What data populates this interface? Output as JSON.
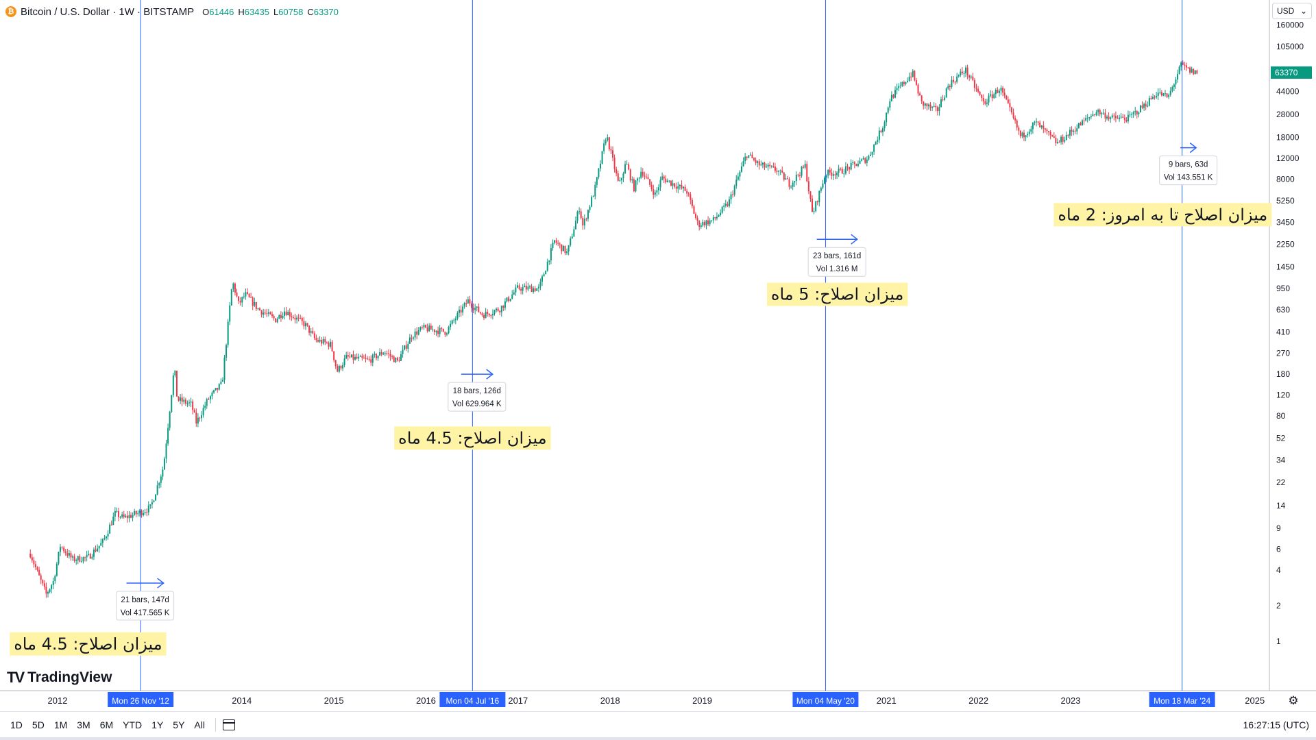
{
  "header": {
    "symbol_icon": "bitcoin-icon",
    "title": "Bitcoin / U.S. Dollar · 1W · BITSTAMP",
    "ohlc": [
      {
        "key": "O",
        "value": "61446"
      },
      {
        "key": "H",
        "value": "63435"
      },
      {
        "key": "L",
        "value": "60758"
      },
      {
        "key": "C",
        "value": "63370"
      }
    ]
  },
  "currency_selector": {
    "value": "USD",
    "icon": "chevron-down-icon"
  },
  "logo": {
    "text": "TradingView",
    "mark": "TV"
  },
  "bottom_toolbar": {
    "ranges": [
      "1D",
      "5D",
      "1M",
      "3M",
      "6M",
      "YTD",
      "1Y",
      "5Y",
      "All"
    ],
    "calendar_icon": "calendar-icon",
    "clock": "16:27:15 (UTC)"
  },
  "settings_icon": "gear-icon",
  "colors": {
    "up": "#089981",
    "down": "#f23645",
    "vline": "#2962ff",
    "note_bg": "#fff3a6",
    "price_badge": "#089981"
  },
  "chart_data": {
    "type": "candlestick",
    "scale": "log",
    "ylim": [
      0.6,
      200000
    ],
    "y_ticks": [
      160000,
      105000,
      60000,
      44000,
      28000,
      18000,
      12000,
      8000,
      5250,
      3450,
      2250,
      1450,
      950,
      630,
      410,
      270,
      180,
      120,
      80,
      52,
      34,
      22,
      14,
      9,
      6,
      4,
      2,
      1
    ],
    "x_ticks": [
      {
        "label": "2012",
        "year": 2012.0
      },
      {
        "label": "2014",
        "year": 2014.0
      },
      {
        "label": "2015",
        "year": 2015.0
      },
      {
        "label": "2016",
        "year": 2016.0
      },
      {
        "label": "2017",
        "year": 2017.0
      },
      {
        "label": "2018",
        "year": 2018.0
      },
      {
        "label": "2019",
        "year": 2019.0
      },
      {
        "label": "2021",
        "year": 2021.0
      },
      {
        "label": "2022",
        "year": 2022.0
      },
      {
        "label": "2023",
        "year": 2023.0
      },
      {
        "label": "2025",
        "year": 2025.0
      }
    ],
    "current_price": {
      "label": "63370",
      "value": 63370
    },
    "price_series": [
      [
        "2011-09-15",
        5.5
      ],
      [
        "2011-10-20",
        3.5
      ],
      [
        "2011-11-17",
        2.5
      ],
      [
        "2011-12-15",
        3.2
      ],
      [
        "2012-01-12",
        6.4
      ],
      [
        "2012-03-01",
        4.9
      ],
      [
        "2012-05-01",
        5.1
      ],
      [
        "2012-07-01",
        7.0
      ],
      [
        "2012-08-17",
        12.0
      ],
      [
        "2012-09-20",
        11.0
      ],
      [
        "2012-11-26",
        12.3
      ],
      [
        "2013-01-05",
        13.5
      ],
      [
        "2013-02-25",
        30.0
      ],
      [
        "2013-04-09",
        210.0
      ],
      [
        "2013-04-20",
        110.0
      ],
      [
        "2013-06-15",
        100.0
      ],
      [
        "2013-07-05",
        70.0
      ],
      [
        "2013-08-20",
        110.0
      ],
      [
        "2013-10-15",
        150.0
      ],
      [
        "2013-11-25",
        1100.0
      ],
      [
        "2013-12-20",
        700.0
      ],
      [
        "2014-01-15",
        850.0
      ],
      [
        "2014-03-10",
        630.0
      ],
      [
        "2014-05-15",
        520.0
      ],
      [
        "2014-06-20",
        620.0
      ],
      [
        "2014-09-10",
        470.0
      ],
      [
        "2014-10-20",
        350.0
      ],
      [
        "2014-12-20",
        320.0
      ],
      [
        "2015-01-14",
        190.0
      ],
      [
        "2015-02-20",
        250.0
      ],
      [
        "2015-05-20",
        235.0
      ],
      [
        "2015-07-20",
        280.0
      ],
      [
        "2015-09-10",
        230.0
      ],
      [
        "2015-11-05",
        380.0
      ],
      [
        "2015-12-20",
        440.0
      ],
      [
        "2016-03-20",
        410.0
      ],
      [
        "2016-06-18",
        760.0
      ],
      [
        "2016-07-04",
        680.0
      ],
      [
        "2016-08-15",
        570.0
      ],
      [
        "2016-10-20",
        640.0
      ],
      [
        "2016-12-31",
        960.0
      ],
      [
        "2017-03-25",
        950.0
      ],
      [
        "2017-05-25",
        2400.0
      ],
      [
        "2017-07-15",
        1900.0
      ],
      [
        "2017-09-01",
        4600.0
      ],
      [
        "2017-09-15",
        3200.0
      ],
      [
        "2017-11-01",
        6500.0
      ],
      [
        "2017-12-17",
        19000.0
      ],
      [
        "2018-02-05",
        7000.0
      ],
      [
        "2018-03-05",
        11000.0
      ],
      [
        "2018-04-05",
        6700.0
      ],
      [
        "2018-05-05",
        9500.0
      ],
      [
        "2018-06-29",
        5900.0
      ],
      [
        "2018-07-25",
        8200.0
      ],
      [
        "2018-11-01",
        6300.0
      ],
      [
        "2018-12-15",
        3300.0
      ],
      [
        "2019-02-15",
        3600.0
      ],
      [
        "2019-04-15",
        5000.0
      ],
      [
        "2019-06-26",
        13000.0
      ],
      [
        "2019-08-15",
        10500.0
      ],
      [
        "2019-10-25",
        9500.0
      ],
      [
        "2019-12-15",
        7200.0
      ],
      [
        "2020-02-13",
        10300.0
      ],
      [
        "2020-03-13",
        4000.0
      ],
      [
        "2020-05-04",
        8900.0
      ],
      [
        "2020-07-01",
        9200.0
      ],
      [
        "2020-10-20",
        12000.0
      ],
      [
        "2020-12-20",
        23000.0
      ],
      [
        "2021-01-15",
        38000.0
      ],
      [
        "2021-04-14",
        63000.0
      ],
      [
        "2021-05-20",
        35000.0
      ],
      [
        "2021-07-20",
        30000.0
      ],
      [
        "2021-09-05",
        50000.0
      ],
      [
        "2021-11-10",
        67000.0
      ],
      [
        "2022-01-22",
        35000.0
      ],
      [
        "2022-03-28",
        47000.0
      ],
      [
        "2022-05-12",
        28000.0
      ],
      [
        "2022-06-18",
        18000.0
      ],
      [
        "2022-08-15",
        24000.0
      ],
      [
        "2022-11-09",
        16000.0
      ],
      [
        "2023-01-15",
        21000.0
      ],
      [
        "2023-04-14",
        30000.0
      ],
      [
        "2023-06-15",
        26000.0
      ],
      [
        "2023-08-17",
        26000.0
      ],
      [
        "2023-10-24",
        34000.0
      ],
      [
        "2023-12-10",
        43000.0
      ],
      [
        "2024-01-23",
        39000.0
      ],
      [
        "2024-03-14",
        73000.0
      ],
      [
        "2024-04-20",
        65000.0
      ],
      [
        "2024-05-20",
        63370.0
      ]
    ],
    "vertical_lines": [
      {
        "date": "2012-11-26",
        "label": "Mon 26 Nov '12"
      },
      {
        "date": "2016-07-04",
        "label": "Mon 04 Jul '16"
      },
      {
        "date": "2020-05-04",
        "label": "Mon 04 May '20"
      },
      {
        "date": "2024-03-18",
        "label": "Mon 18 Mar '24"
      }
    ],
    "measurements": [
      {
        "bars": "21 bars, 147d",
        "vol": "Vol 417.565 K",
        "from": "2012-10-01",
        "to": "2013-02-25",
        "at": 3.1
      },
      {
        "bars": "18 bars, 126d",
        "vol": "Vol 629.964 K",
        "from": "2016-05-20",
        "to": "2016-09-22",
        "at": 180
      },
      {
        "bars": "23 bars, 161d",
        "vol": "Vol 1.316 M",
        "from": "2020-03-30",
        "to": "2020-09-07",
        "at": 2480
      },
      {
        "bars": "9 bars, 63d",
        "vol": "Vol 143.551 K",
        "from": "2024-03-11",
        "to": "2024-05-13",
        "at": 14700
      }
    ],
    "annotations": [
      {
        "text": "میزان اصلاح: 4.5 ماه",
        "date": "2012-05-01",
        "value": 0.95
      },
      {
        "text": "میزان اصلاح: 4.5 ماه",
        "date": "2016-07-04",
        "value": 52
      },
      {
        "text": "میزان اصلاح: 5 ماه",
        "date": "2020-06-20",
        "value": 850
      },
      {
        "text": "میزان اصلاح تا به امروز: 2 ماه",
        "date": "2024-01-01",
        "value": 4000
      }
    ]
  }
}
